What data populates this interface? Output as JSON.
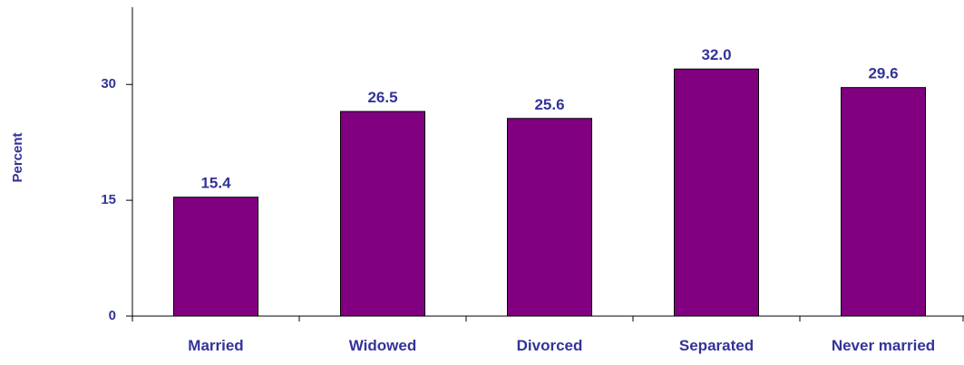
{
  "chart_data": {
    "type": "bar",
    "title": "",
    "xlabel": "",
    "ylabel": "Percent",
    "categories": [
      "Married",
      "Widowed",
      "Divorced",
      "Separated",
      "Never married"
    ],
    "values": [
      15.4,
      26.5,
      25.6,
      32.0,
      29.6
    ],
    "value_labels": [
      "15.4",
      "26.5",
      "25.6",
      "32.0",
      "29.6"
    ],
    "ylim": [
      0,
      40
    ],
    "yticks": [
      0,
      15,
      30
    ],
    "ytick_labels": [
      "0",
      "15",
      "30"
    ],
    "grid": false,
    "legend": "none",
    "colors": {
      "bar": "#800080",
      "text": "#333399",
      "axis": "#000000"
    }
  }
}
